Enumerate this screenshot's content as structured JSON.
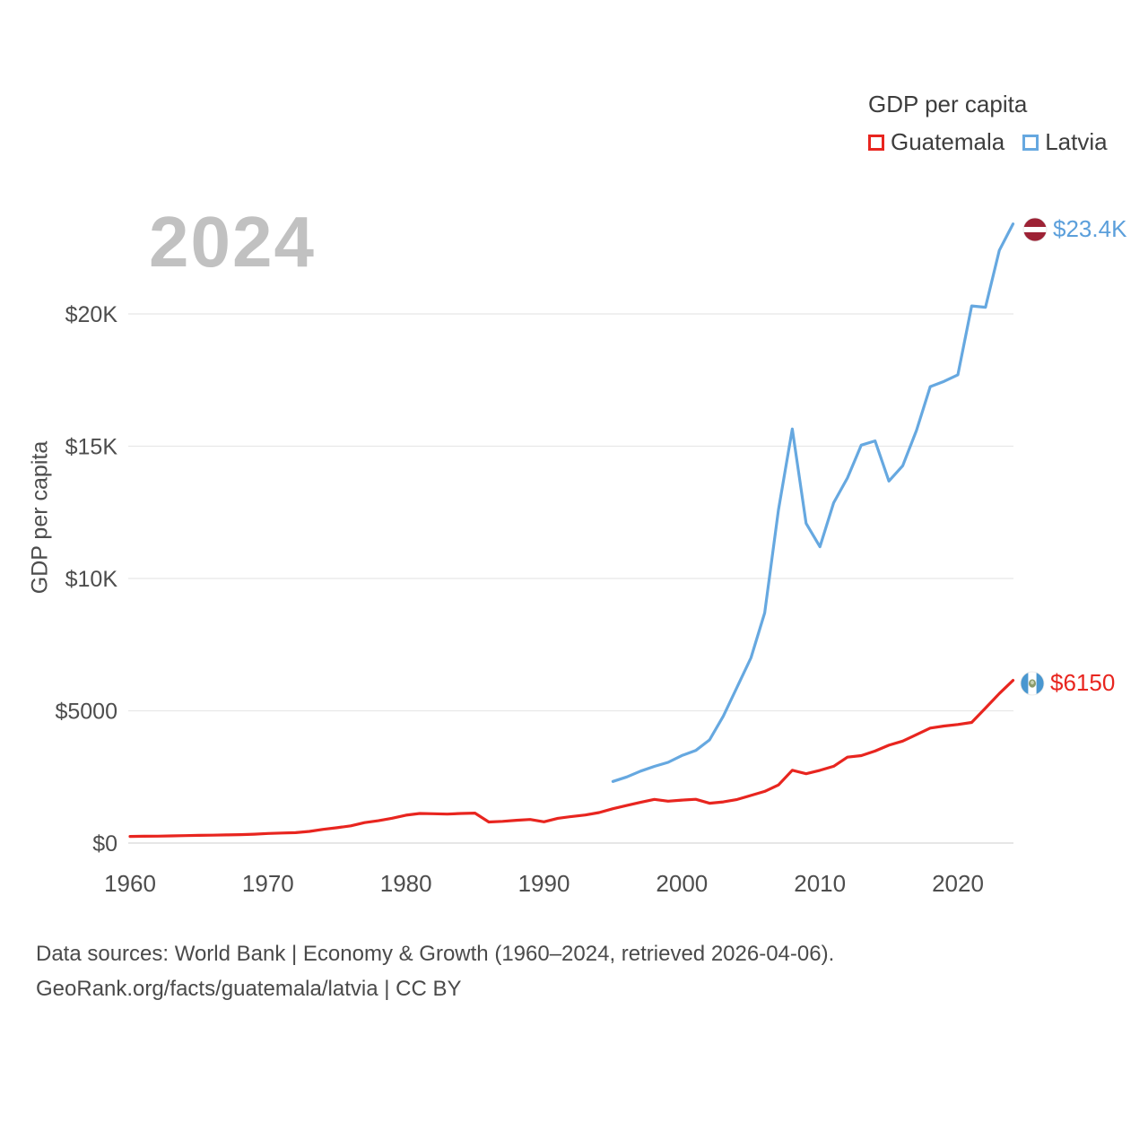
{
  "chart_data": {
    "type": "line",
    "title": "GDP per capita",
    "watermark": "2024",
    "xlabel": "",
    "ylabel": "GDP per capita",
    "grid": true,
    "legend_position": "top-right",
    "xlim": [
      1960,
      2024
    ],
    "ylim": [
      0,
      24000
    ],
    "x_ticks": [
      1960,
      1970,
      1980,
      1990,
      2000,
      2010,
      2020
    ],
    "y_ticks": [
      {
        "value": 0,
        "label": "$0"
      },
      {
        "value": 5000,
        "label": "$5000"
      },
      {
        "value": 10000,
        "label": "$10K"
      },
      {
        "value": 15000,
        "label": "$15K"
      },
      {
        "value": 20000,
        "label": "$20K"
      }
    ],
    "series": [
      {
        "name": "Guatemala",
        "color": "#e8251f",
        "label_color": "#e8251f",
        "end_label": "$6150",
        "start_year": 1960,
        "values": [
          252,
          256,
          260,
          270,
          281,
          291,
          298,
          308,
          320,
          335,
          364,
          378,
          392,
          441,
          519,
          578,
          650,
          772,
          845,
          940,
          1054,
          1119,
          1108,
          1095,
          1120,
          1131,
          795,
          820,
          861,
          892,
          803,
          934,
          1003,
          1062,
          1154,
          1298,
          1420,
          1538,
          1651,
          1582,
          1624,
          1654,
          1504,
          1557,
          1648,
          1799,
          1951,
          2198,
          2752,
          2622,
          2748,
          2902,
          3247,
          3306,
          3478,
          3700,
          3853,
          4098,
          4347,
          4425,
          4480,
          4560,
          5100,
          5650,
          6150
        ]
      },
      {
        "name": "Latvia",
        "color": "#66a8e0",
        "label_color": "#5b9fdb",
        "end_label": "$23.4K",
        "start_year": 1995,
        "values": [
          2330,
          2500,
          2720,
          2900,
          3050,
          3310,
          3500,
          3900,
          4800,
          5900,
          7000,
          8700,
          12600,
          15650,
          12080,
          11200,
          12860,
          13800,
          15040,
          15200,
          13680,
          14260,
          15600,
          17250,
          17450,
          17700,
          20300,
          20250,
          22400,
          23400
        ]
      }
    ]
  },
  "legend": {
    "title": "GDP per capita",
    "items": [
      {
        "label": "Guatemala",
        "color": "#e8251f"
      },
      {
        "label": "Latvia",
        "color": "#66a8e0"
      }
    ]
  },
  "footer": {
    "line1": "Data sources: World Bank | Economy & Growth (1960–2024, retrieved 2026-04-06).",
    "line2": "GeoRank.org/facts/guatemala/latvia | CC BY"
  }
}
